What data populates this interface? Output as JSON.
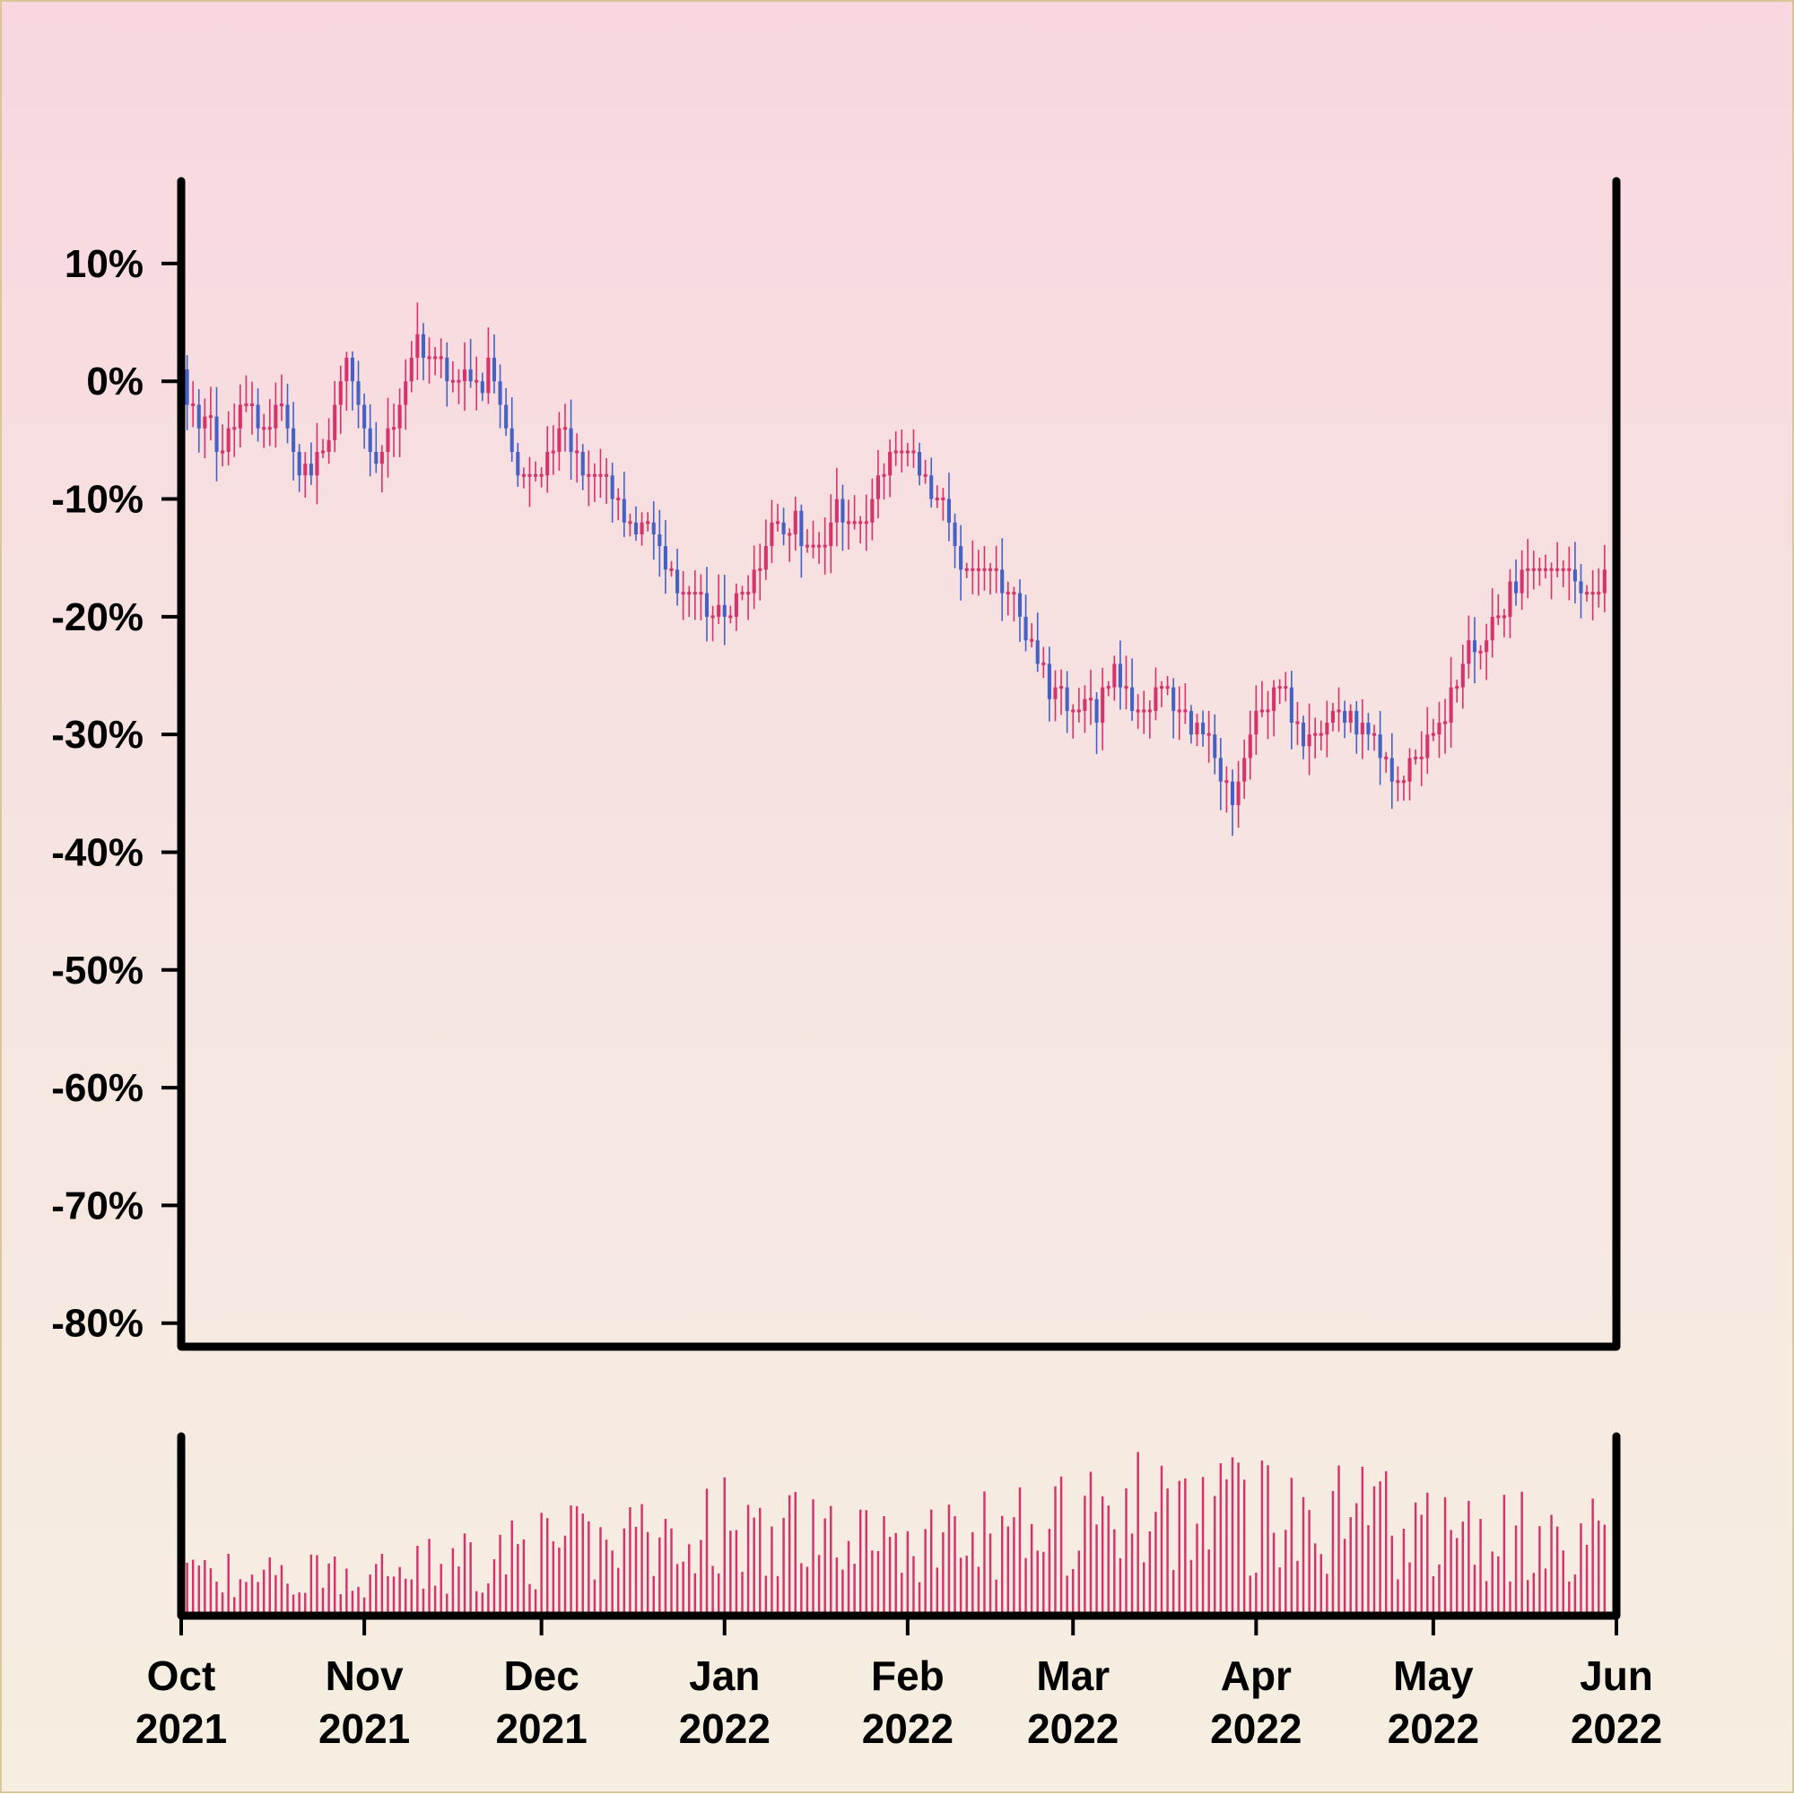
{
  "chart_data": {
    "type": "candlestick",
    "price_panel": {
      "y_unit": "percent change from start",
      "ylim": [
        -82,
        17
      ],
      "y_ticks": [
        10,
        0,
        -10,
        -20,
        -30,
        -40,
        -50,
        -60,
        -70,
        -80
      ],
      "y_tick_labels": [
        "10%",
        "0%",
        "-10%",
        "-20%",
        "-30%",
        "-40%",
        "-50%",
        "-60%",
        "-70%",
        "-80%"
      ]
    },
    "volume_panel": {
      "y_ticks": [],
      "bar_color": "#d6336c"
    },
    "x_axis": {
      "range": [
        "2021-10-01",
        "2022-06-01"
      ],
      "ticks": [
        {
          "date": "2021-10-01",
          "month": "Oct",
          "year": "2021"
        },
        {
          "date": "2021-11-01",
          "month": "Nov",
          "year": "2021"
        },
        {
          "date": "2021-12-01",
          "month": "Dec",
          "year": "2021"
        },
        {
          "date": "2022-01-01",
          "month": "Jan",
          "year": "2022"
        },
        {
          "date": "2022-02-01",
          "month": "Feb",
          "year": "2022"
        },
        {
          "date": "2022-03-01",
          "month": "Mar",
          "year": "2022"
        },
        {
          "date": "2022-04-01",
          "month": "Apr",
          "year": "2022"
        },
        {
          "date": "2022-05-01",
          "month": "May",
          "year": "2022"
        },
        {
          "date": "2022-06-01",
          "month": "Jun",
          "year": "2022"
        }
      ]
    },
    "colors": {
      "up": "#d6336c",
      "down": "#4461c3"
    },
    "close_path_percent": [
      [
        "2021-10-01",
        0
      ],
      [
        "2021-10-04",
        -4
      ],
      [
        "2021-10-08",
        -6
      ],
      [
        "2021-10-12",
        -2
      ],
      [
        "2021-10-15",
        -4
      ],
      [
        "2021-10-18",
        -2
      ],
      [
        "2021-10-22",
        -9
      ],
      [
        "2021-10-26",
        -4
      ],
      [
        "2021-10-29",
        1
      ],
      [
        "2021-11-03",
        -7
      ],
      [
        "2021-11-07",
        -2
      ],
      [
        "2021-11-10",
        3
      ],
      [
        "2021-11-14",
        1
      ],
      [
        "2021-11-18",
        -1
      ],
      [
        "2021-11-22",
        1
      ],
      [
        "2021-11-27",
        -8
      ],
      [
        "2021-11-30",
        -9
      ],
      [
        "2021-12-04",
        -4
      ],
      [
        "2021-12-08",
        -8
      ],
      [
        "2021-12-12",
        -9
      ],
      [
        "2021-12-16",
        -13
      ],
      [
        "2021-12-19",
        -12
      ],
      [
        "2021-12-24",
        -18
      ],
      [
        "2021-12-28",
        -19
      ],
      [
        "2022-01-01",
        -20
      ],
      [
        "2022-01-05",
        -18
      ],
      [
        "2022-01-09",
        -13
      ],
      [
        "2022-01-13",
        -13
      ],
      [
        "2022-01-17",
        -15
      ],
      [
        "2022-01-20",
        -11
      ],
      [
        "2022-01-25",
        -12
      ],
      [
        "2022-01-29",
        -6
      ],
      [
        "2022-02-02",
        -7
      ],
      [
        "2022-02-07",
        -11
      ],
      [
        "2022-02-11",
        -17
      ],
      [
        "2022-02-15",
        -16
      ],
      [
        "2022-02-19",
        -19
      ],
      [
        "2022-02-23",
        -24
      ],
      [
        "2022-02-27",
        -27
      ],
      [
        "2022-03-03",
        -29
      ],
      [
        "2022-03-08",
        -25
      ],
      [
        "2022-03-12",
        -29
      ],
      [
        "2022-03-16",
        -26
      ],
      [
        "2022-03-20",
        -29
      ],
      [
        "2022-03-24",
        -31
      ],
      [
        "2022-03-28",
        -36
      ],
      [
        "2022-04-01",
        -29
      ],
      [
        "2022-04-05",
        -26
      ],
      [
        "2022-04-10",
        -30
      ],
      [
        "2022-04-15",
        -28
      ],
      [
        "2022-04-20",
        -30
      ],
      [
        "2022-04-25",
        -34
      ],
      [
        "2022-04-29",
        -32
      ],
      [
        "2022-05-03",
        -28
      ],
      [
        "2022-05-07",
        -23
      ],
      [
        "2022-05-12",
        -20
      ],
      [
        "2022-05-16",
        -17
      ],
      [
        "2022-05-20",
        -16
      ],
      [
        "2022-05-24",
        -17
      ],
      [
        "2022-05-28",
        -19
      ],
      [
        "2022-05-30",
        -16
      ]
    ],
    "volume_level_path": [
      [
        "2021-10-01",
        0.25
      ],
      [
        "2021-11-01",
        0.25
      ],
      [
        "2021-11-20",
        0.35
      ],
      [
        "2021-12-01",
        0.42
      ],
      [
        "2021-12-20",
        0.45
      ],
      [
        "2022-01-01",
        0.55
      ],
      [
        "2022-02-01",
        0.45
      ],
      [
        "2022-03-01",
        0.55
      ],
      [
        "2022-03-20",
        0.7
      ],
      [
        "2022-04-01",
        0.62
      ],
      [
        "2022-04-20",
        0.6
      ],
      [
        "2022-05-01",
        0.5
      ],
      [
        "2022-06-01",
        0.48
      ]
    ]
  }
}
